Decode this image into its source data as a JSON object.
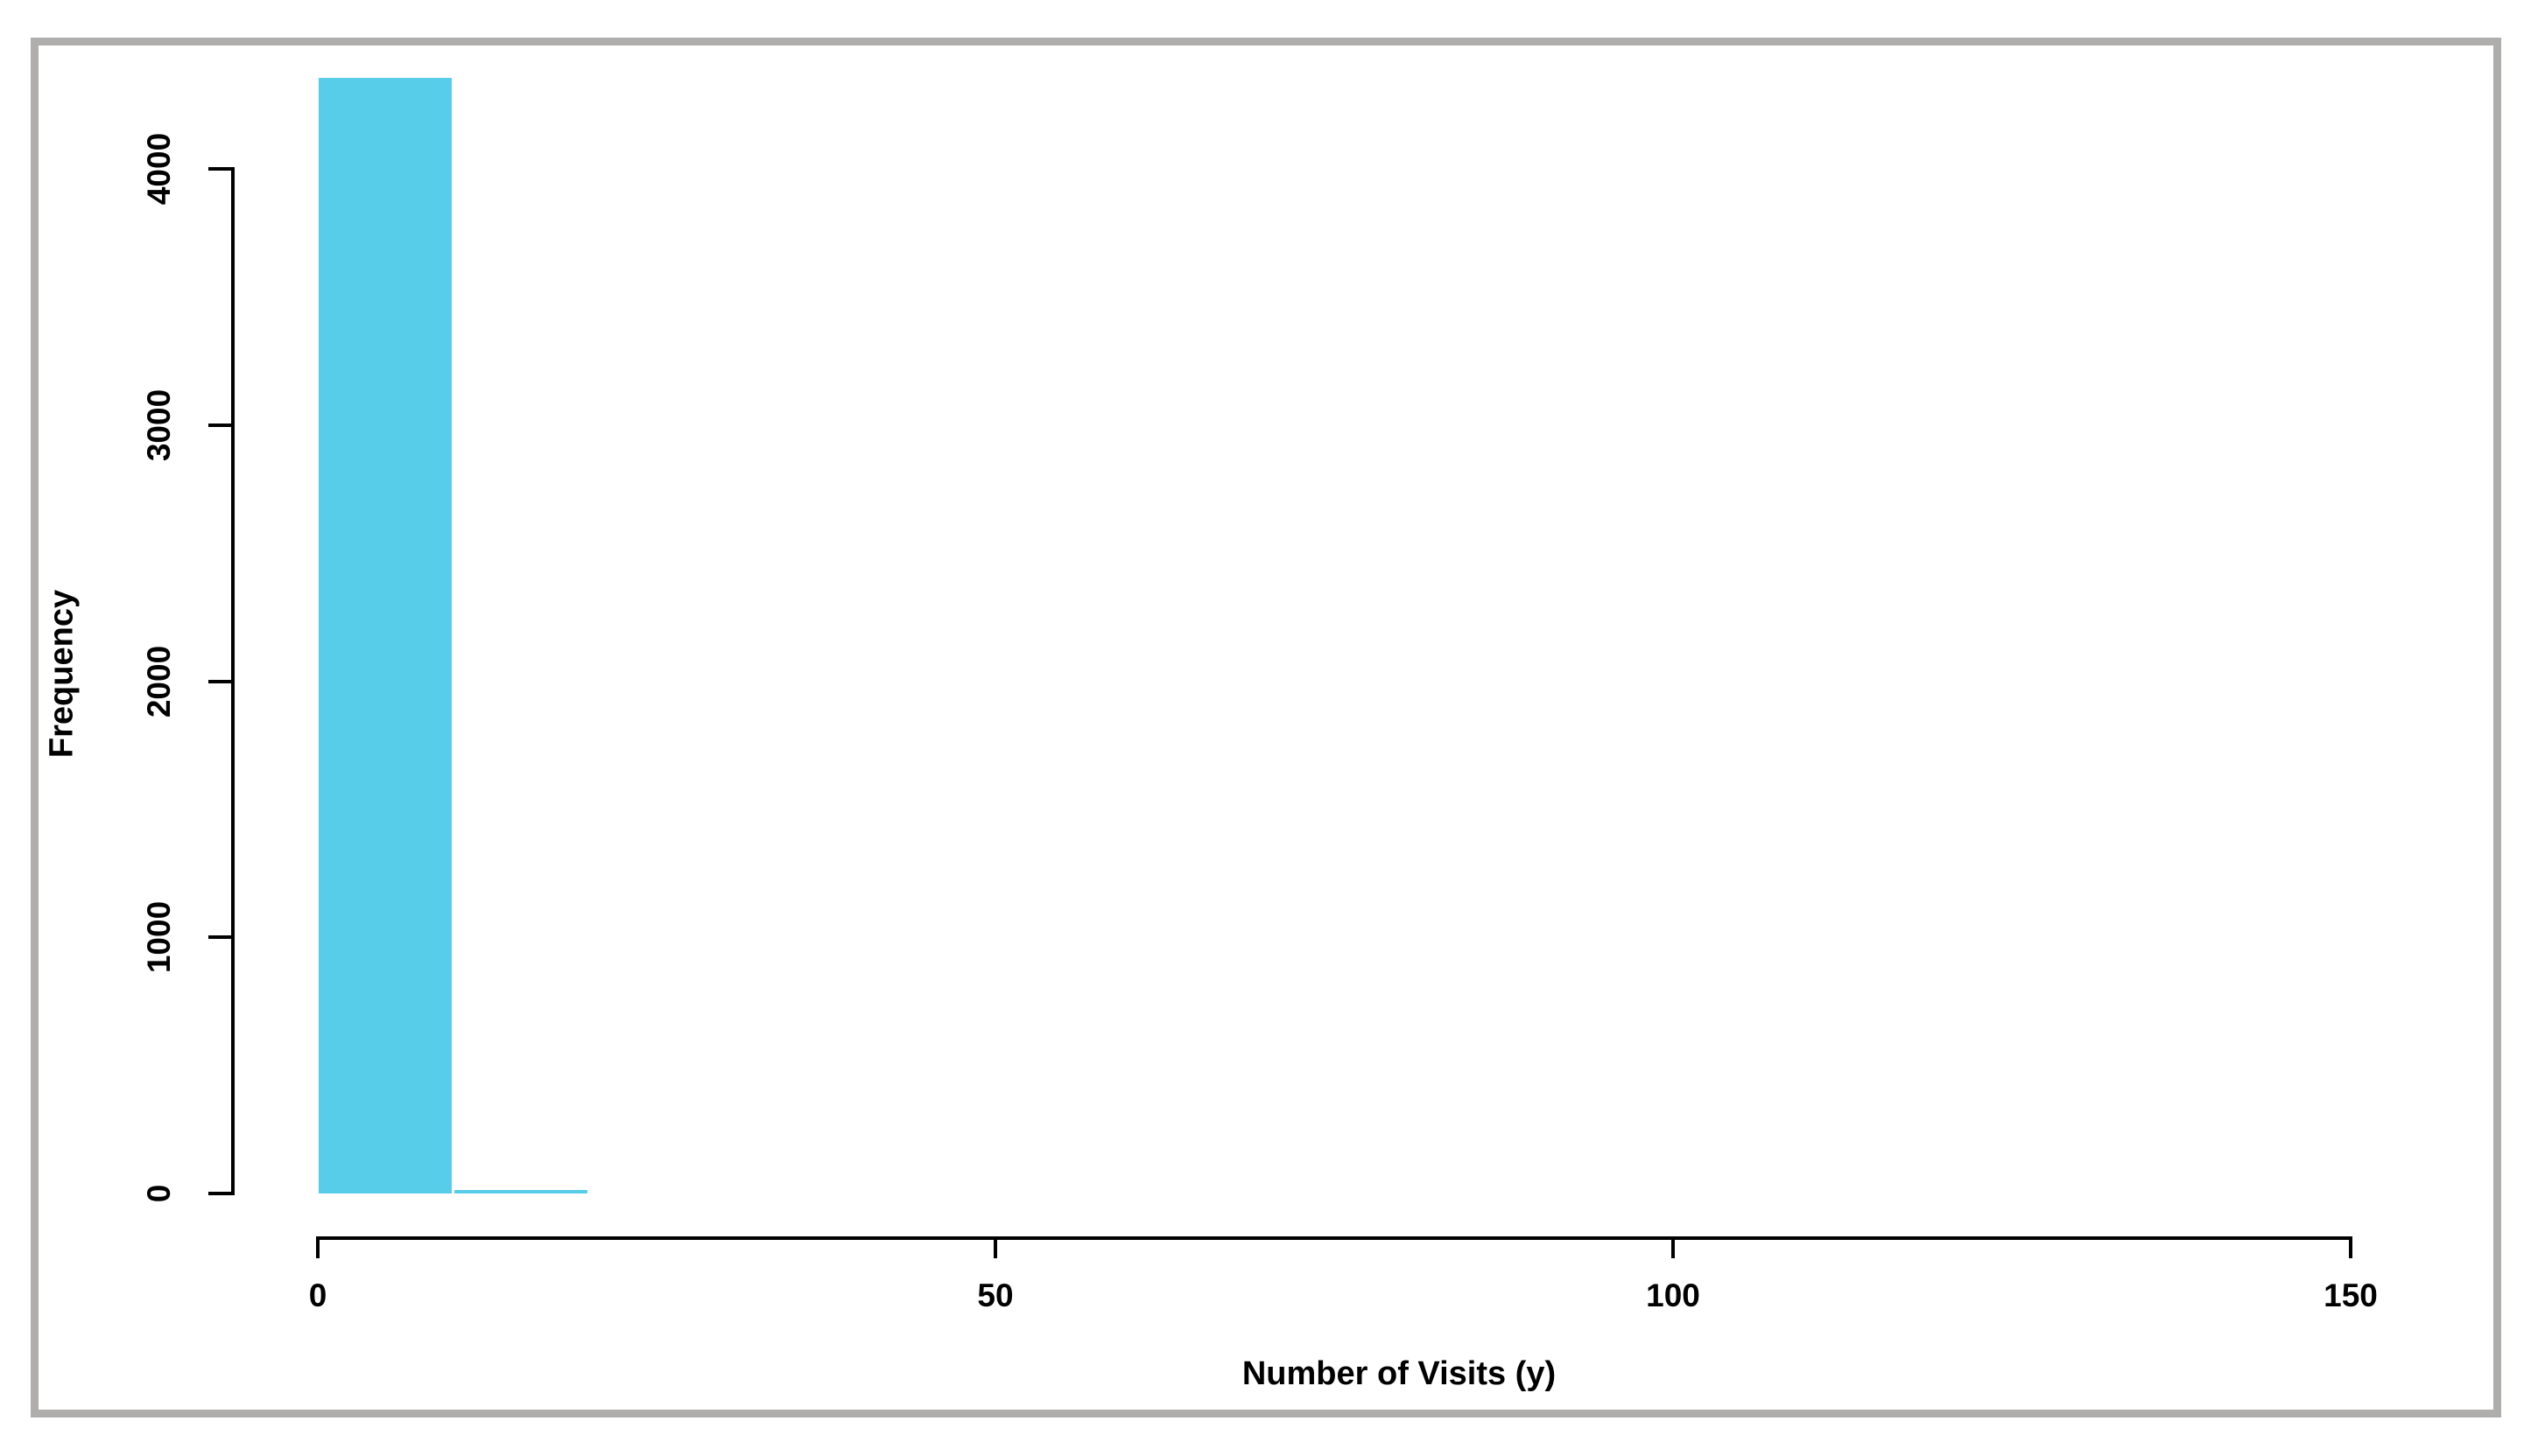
{
  "chart_data": {
    "type": "bar",
    "subtype": "histogram",
    "title": "",
    "xlabel": "Number of Visits (y)",
    "ylabel": "Frequency",
    "bin_breaks": [
      0,
      10,
      20,
      30,
      40,
      50,
      60,
      70,
      80,
      90,
      100,
      110,
      120,
      130,
      140,
      150
    ],
    "bin_counts": [
      4355,
      13,
      0,
      0,
      0,
      0,
      0,
      0,
      0,
      0,
      0,
      0,
      0,
      0,
      0
    ],
    "x_ticks": [
      0,
      50,
      100,
      150
    ],
    "y_ticks": [
      0,
      1000,
      2000,
      3000,
      4000
    ],
    "xlim": [
      0,
      150
    ],
    "ylim": [
      0,
      4355
    ],
    "grid": false,
    "legend": false,
    "bar_color": "#58cdea",
    "axis_color": "#000000",
    "text_color": "#000000",
    "frame_color": "#b0adad",
    "background_color": "#ffffff"
  }
}
